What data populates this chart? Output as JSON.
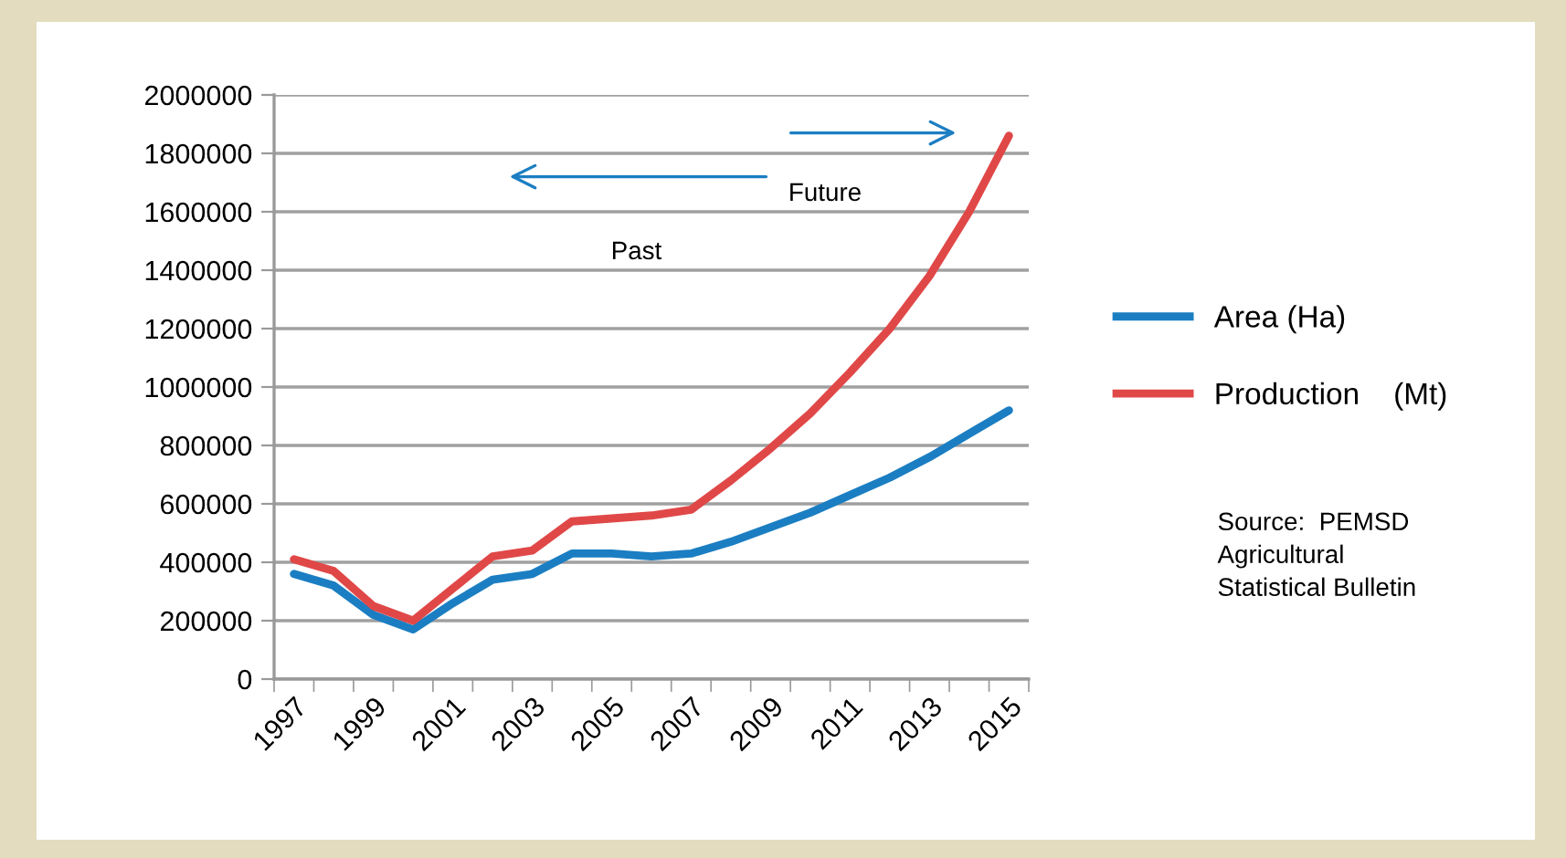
{
  "chart_data": {
    "type": "line",
    "categories": [
      "1997",
      null,
      "1999",
      null,
      "2001",
      null,
      "2003",
      null,
      "2005",
      null,
      "2007",
      null,
      "2009",
      null,
      "2011",
      null,
      "2013",
      null,
      "2015"
    ],
    "series": [
      {
        "name": "Area (Ha)",
        "color": "#1b7ec2",
        "values": [
          360000,
          320000,
          220000,
          170000,
          260000,
          340000,
          360000,
          430000,
          430000,
          420000,
          430000,
          470000,
          520000,
          570000,
          630000,
          690000,
          760000,
          840000,
          920000
        ]
      },
      {
        "name": "Production    (Mt)",
        "color": "#e04848",
        "values": [
          410000,
          370000,
          250000,
          200000,
          310000,
          420000,
          440000,
          540000,
          550000,
          560000,
          580000,
          680000,
          790000,
          910000,
          1050000,
          1200000,
          1380000,
          1600000,
          1860000
        ]
      }
    ],
    "ylim": [
      0,
      2000000
    ],
    "yticks": [
      0,
      200000,
      400000,
      600000,
      800000,
      1000000,
      1200000,
      1400000,
      1600000,
      1800000,
      2000000
    ],
    "grid": "y",
    "legend": "right",
    "marker": "none",
    "line_style": "solid",
    "annotations": [
      "Future",
      "Past",
      "Source:  PEMSD\nAgricultural\nStatistical Bulletin"
    ]
  }
}
